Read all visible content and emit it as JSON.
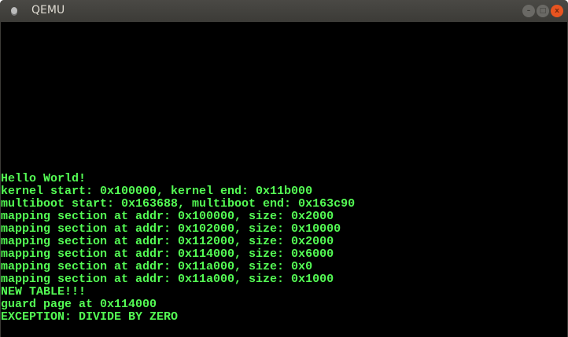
{
  "window": {
    "title": "QEMU",
    "controls": {
      "minimize": "–",
      "maximize": "□",
      "close": "x"
    }
  },
  "console": {
    "text_color": "#54fc54",
    "lines": [
      "Hello World!",
      "kernel start: 0x100000, kernel end: 0x11b000",
      "multiboot start: 0x163688, multiboot end: 0x163c90",
      "mapping section at addr: 0x100000, size: 0x2000",
      "mapping section at addr: 0x102000, size: 0x10000",
      "mapping section at addr: 0x112000, size: 0x2000",
      "mapping section at addr: 0x114000, size: 0x6000",
      "mapping section at addr: 0x11a000, size: 0x0",
      "mapping section at addr: 0x11a000, size: 0x1000",
      "NEW TABLE!!!",
      "guard page at 0x114000",
      "EXCEPTION: DIVIDE BY ZERO"
    ]
  }
}
